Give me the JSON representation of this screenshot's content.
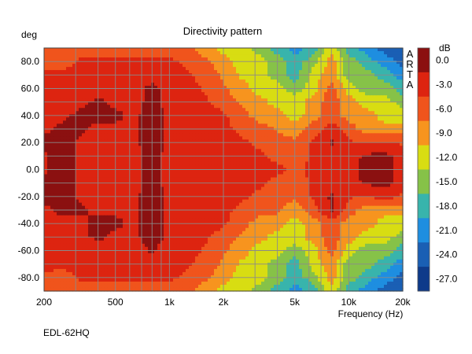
{
  "chart_data": {
    "type": "heatmap",
    "title": "Directivity pattern",
    "xlabel": "Frequency (Hz)",
    "ylabel": "deg",
    "x_scale": "log",
    "xlim": [
      200,
      20000
    ],
    "ylim": [
      90,
      -90
    ],
    "x_ticks": [
      {
        "value": 200,
        "label": "200"
      },
      {
        "value": 500,
        "label": "500"
      },
      {
        "value": 1000,
        "label": "1k"
      },
      {
        "value": 2000,
        "label": "2k"
      },
      {
        "value": 5000,
        "label": "5k"
      },
      {
        "value": 10000,
        "label": "10k"
      },
      {
        "value": 20000,
        "label": "20k"
      }
    ],
    "y_ticks": [
      {
        "value": -80,
        "label": "-80.0"
      },
      {
        "value": -60,
        "label": "-60.0"
      },
      {
        "value": -40,
        "label": "-40.0"
      },
      {
        "value": -20,
        "label": "-20.0"
      },
      {
        "value": 0,
        "label": "0.0"
      },
      {
        "value": 20,
        "label": "20.0"
      },
      {
        "value": 40,
        "label": "40.0"
      },
      {
        "value": 60,
        "label": "60.0"
      },
      {
        "value": 80,
        "label": "80.0"
      }
    ],
    "grid": true,
    "colorbar": {
      "unit": "dB",
      "placement": "right",
      "levels": [
        {
          "label": "0.0",
          "color": "#8b1010"
        },
        {
          "label": "-3.0",
          "color": "#dd2410"
        },
        {
          "label": "-6.0",
          "color": "#f0541c"
        },
        {
          "label": "-9.0",
          "color": "#f7941e"
        },
        {
          "label": "-12.0",
          "color": "#d8dd12"
        },
        {
          "label": "-15.0",
          "color": "#86c248"
        },
        {
          "label": "-18.0",
          "color": "#38b4ac"
        },
        {
          "label": "-21.0",
          "color": "#1e8ee0"
        },
        {
          "label": "-24.0",
          "color": "#1a5fb4"
        },
        {
          "label": "-27.0",
          "color": "#0e3a8a"
        }
      ]
    },
    "grid_frequencies_hz": [
      200,
      250,
      315,
      400,
      500,
      630,
      800,
      1000,
      1250,
      1600,
      2000,
      2500,
      3150,
      4000,
      5000,
      6300,
      8000,
      10000,
      12500,
      16000,
      20000
    ],
    "angles_deg": [
      -90,
      -80,
      -70,
      -60,
      -50,
      -40,
      -30,
      -20,
      -10,
      0,
      10,
      20,
      30,
      40,
      50,
      60,
      70,
      80,
      90
    ],
    "spl_db": [
      [
        -6,
        -6,
        -6,
        -6,
        -6,
        -6,
        -6,
        -6,
        -7,
        -9,
        -12,
        -12,
        -15,
        -18,
        -21,
        -18,
        -12,
        -18,
        -21,
        -24,
        -24
      ],
      [
        -5,
        -6,
        -4,
        -4,
        -4,
        -4,
        -4,
        -4,
        -5,
        -7,
        -9,
        -12,
        -12,
        -15,
        -18,
        -15,
        -9,
        -15,
        -18,
        -21,
        -24
      ],
      [
        -3,
        -4,
        -3,
        -3,
        -3,
        -3,
        -3,
        -3,
        -4,
        -6,
        -8,
        -11,
        -12,
        -15,
        -18,
        -12,
        -9,
        -15,
        -15,
        -18,
        -21
      ],
      [
        -2,
        -3,
        -3,
        -3,
        -3,
        -3,
        -1,
        -3,
        -3,
        -5,
        -7,
        -9,
        -12,
        -12,
        -15,
        -12,
        -6,
        -12,
        -15,
        -15,
        -18
      ],
      [
        -2,
        -3,
        -2,
        -1,
        -2,
        -2,
        -0.5,
        -2,
        -3,
        -4,
        -6,
        -8,
        -9,
        -12,
        -12,
        -9,
        -6,
        -9,
        -12,
        -12,
        -15
      ],
      [
        -2,
        -2,
        -2,
        -1,
        -1,
        -2,
        -0.5,
        -2,
        -3,
        -3,
        -4,
        -6,
        -9,
        -9,
        -12,
        -9,
        -6,
        -9,
        -9,
        -12,
        -12
      ],
      [
        -2,
        -1,
        -1,
        -2,
        -2,
        -2,
        -0.5,
        -2,
        -3,
        -3,
        -4,
        -5,
        -6,
        -7,
        -9,
        -6,
        -1,
        -6,
        -9,
        -9,
        -9
      ],
      [
        -1,
        0,
        -2,
        -2,
        -2,
        -2,
        -0.5,
        -2,
        -3,
        -3,
        -3,
        -4,
        -5,
        -6,
        -7,
        -4,
        -1,
        -4,
        -5,
        -3,
        -5
      ],
      [
        -1,
        0,
        -2,
        -2,
        -2,
        -2,
        -1,
        -2,
        -3,
        -3,
        -3,
        -3,
        -4,
        -5,
        -6,
        -4,
        -3,
        -3,
        -1,
        -0.5,
        -3
      ],
      [
        -2,
        0,
        -2,
        -2,
        -2,
        -2,
        -1,
        -2,
        -3,
        -3,
        -3,
        -3,
        -4,
        -4,
        -5,
        -4,
        -4,
        -3,
        0,
        -0.5,
        -3
      ],
      [
        -2,
        0,
        -2,
        -2,
        -2,
        -2,
        -1,
        -2,
        -3,
        -3,
        -3,
        -3,
        -4,
        -5,
        -6,
        -4,
        -3,
        -3,
        -1,
        -0.5,
        -3
      ],
      [
        -1,
        0,
        -2,
        -2,
        -2,
        -2,
        -0.5,
        -2,
        -3,
        -3,
        -3,
        -4,
        -5,
        -6,
        -7,
        -4,
        -1,
        -4,
        -5,
        -4,
        -5
      ],
      [
        -2,
        -1,
        -1,
        -2,
        -2,
        -2,
        -0.5,
        -2,
        -3,
        -3,
        -4,
        -5,
        -6,
        -8,
        -9,
        -6,
        -3,
        -6,
        -9,
        -9,
        -9
      ],
      [
        -2,
        -2,
        -1,
        -1,
        -1,
        -2,
        -0.5,
        -2,
        -3,
        -3,
        -4,
        -6,
        -9,
        -9,
        -12,
        -9,
        -6,
        -9,
        -9,
        -12,
        -12
      ],
      [
        -2,
        -3,
        -2,
        -1,
        -2,
        -2,
        -1,
        -2,
        -3,
        -4,
        -6,
        -8,
        -9,
        -12,
        -12,
        -9,
        -6,
        -9,
        -12,
        -12,
        -15
      ],
      [
        -3,
        -3,
        -3,
        -3,
        -3,
        -3,
        -0.5,
        -3,
        -3,
        -5,
        -7,
        -9,
        -12,
        -12,
        -15,
        -12,
        -6,
        -12,
        -15,
        -15,
        -18
      ],
      [
        -4,
        -4,
        -3,
        -3,
        -3,
        -3,
        -3,
        -3,
        -4,
        -6,
        -8,
        -11,
        -12,
        -15,
        -18,
        -12,
        -9,
        -15,
        -15,
        -18,
        -21
      ],
      [
        -5,
        -6,
        -4,
        -4,
        -4,
        -4,
        -4,
        -4,
        -5,
        -7,
        -9,
        -12,
        -12,
        -15,
        -18,
        -15,
        -9,
        -15,
        -18,
        -21,
        -24
      ],
      [
        -6,
        -6,
        -6,
        -6,
        -6,
        -6,
        -6,
        -6,
        -7,
        -9,
        -12,
        -12,
        -15,
        -18,
        -21,
        -18,
        -12,
        -18,
        -21,
        -24,
        -24
      ]
    ],
    "watermark": "ARTA"
  },
  "caption": "EDL-62HQ"
}
